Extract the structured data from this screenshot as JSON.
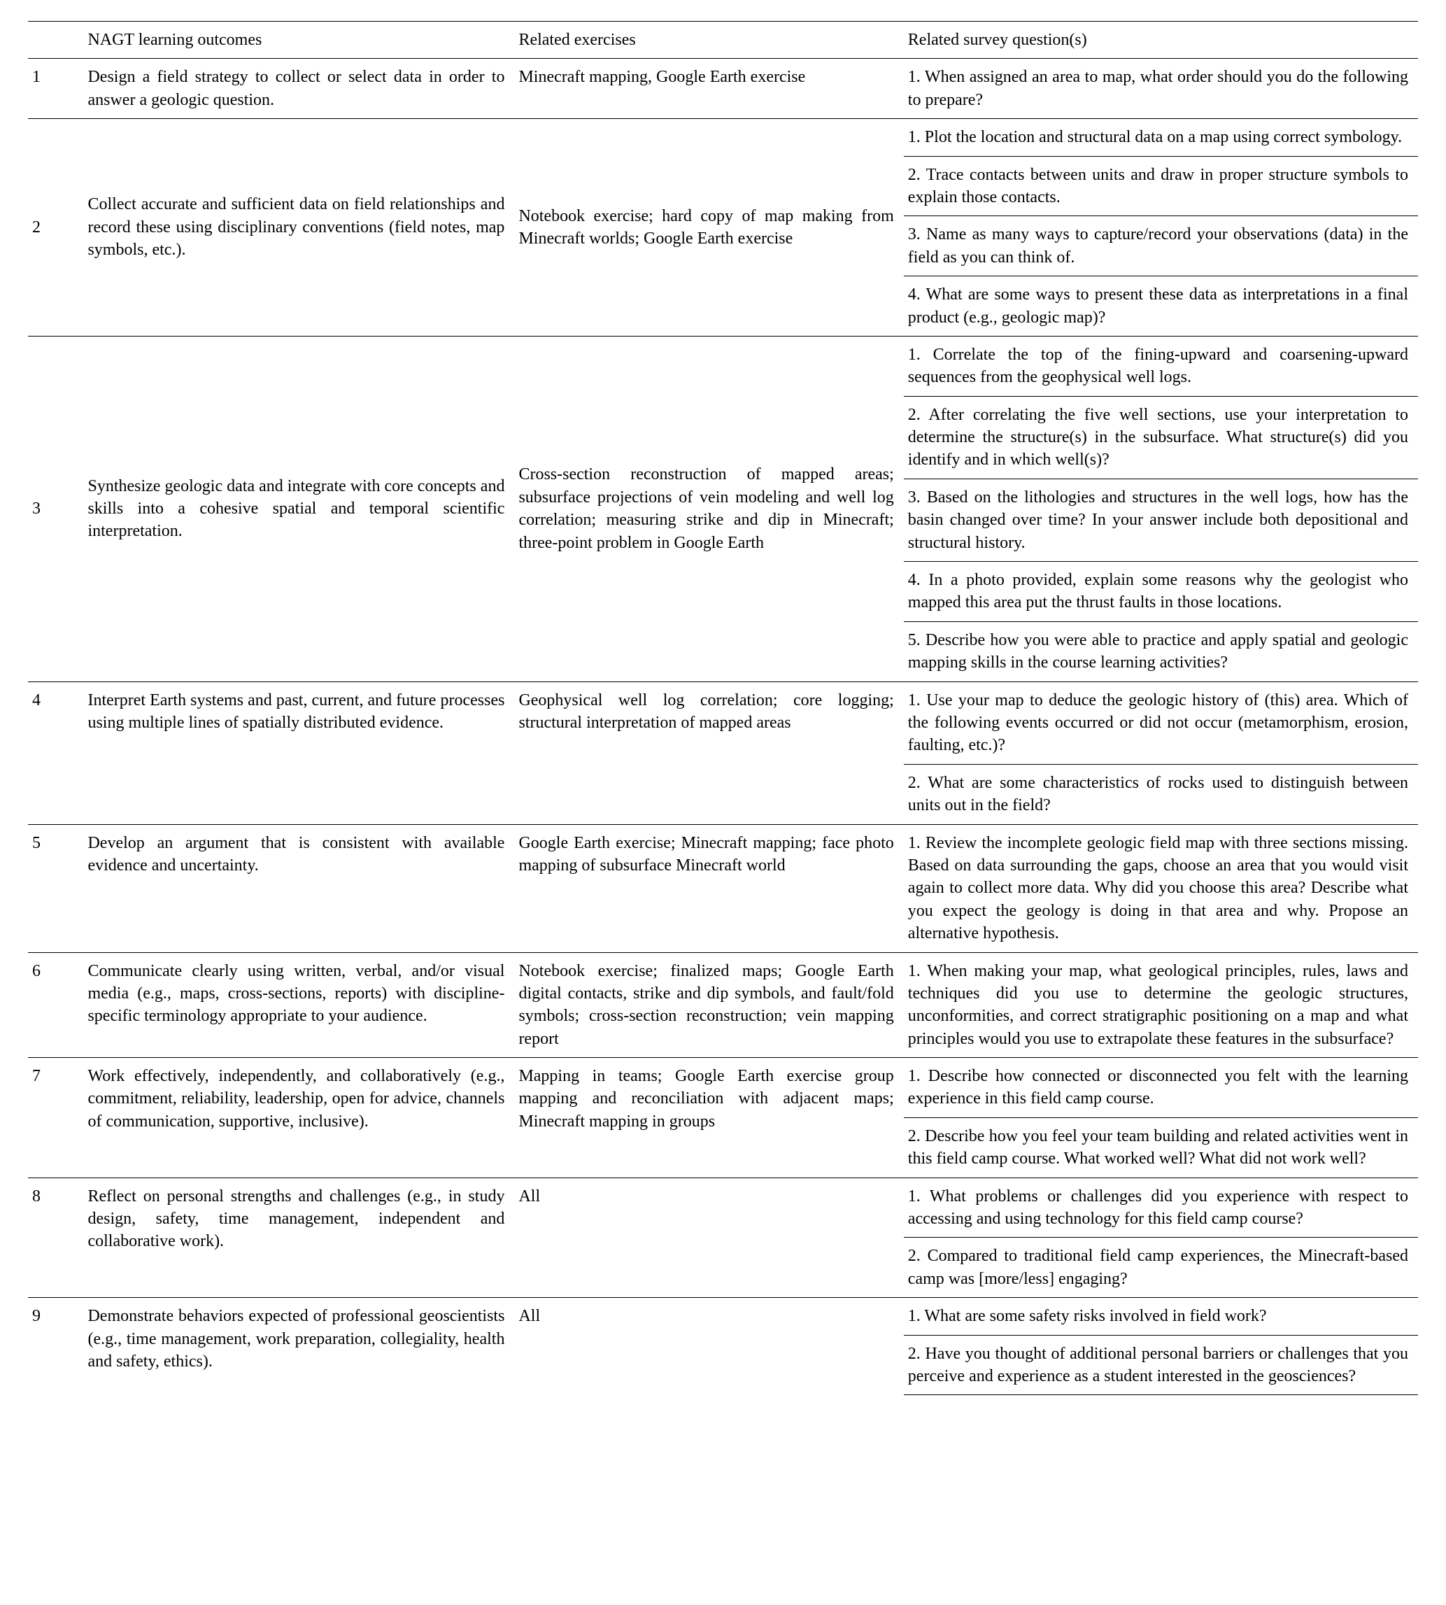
{
  "headers": {
    "num": "",
    "outcomes": "NAGT learning outcomes",
    "exercises": "Related exercises",
    "survey": "Related survey question(s)"
  },
  "rows": [
    {
      "num": "1",
      "outcome": "Design a field strategy to collect or select data in order to answer a geologic question.",
      "exercise": "Minecraft mapping, Google Earth exercise",
      "surveys": [
        "1. When assigned an area to map, what order should you do the following to prepare?"
      ],
      "valign": "top"
    },
    {
      "num": "2",
      "outcome": "Collect accurate and sufficient data on field relationships and record these using disciplinary conventions (field notes, map symbols, etc.).",
      "exercise": "Notebook exercise; hard copy of map making from Minecraft worlds; Google Earth exercise",
      "surveys": [
        "1. Plot the location and structural data on a map using correct symbology.",
        "2. Trace contacts between units and draw in proper structure symbols to explain those contacts.",
        "3. Name as many ways to capture/record your observations (data) in the field as you can think of.",
        "4. What are some ways to present these data as interpretations in a final product (e.g., geologic map)?"
      ],
      "valign": "middle"
    },
    {
      "num": "3",
      "outcome": "Synthesize geologic data and integrate with core concepts and skills into a cohesive spatial and temporal scientific interpretation.",
      "exercise": "Cross-section reconstruction of mapped areas; subsurface projections of vein modeling and well log correlation; measuring strike and dip in Minecraft; three-point problem in Google Earth",
      "surveys": [
        "1. Correlate the top of the fining-upward and coarsening-upward sequences from the geophysical well logs.",
        "2. After correlating the five well sections, use your interpretation to determine the structure(s) in the subsurface. What structure(s) did you identify and in which well(s)?",
        "3. Based on the lithologies and structures in the well logs, how has the basin changed over time? In your answer include both depositional and structural history.",
        "4. In a photo provided, explain some reasons why the geologist who mapped this area put the thrust faults in those locations.",
        "5. Describe how you were able to practice and apply spatial and geologic mapping skills in the course learning activities?"
      ],
      "valign": "middle"
    },
    {
      "num": "4",
      "outcome": "Interpret Earth systems and past, current, and future processes using multiple lines of spatially distributed evidence.",
      "exercise": "Geophysical well log correlation; core logging; structural interpretation of mapped areas",
      "surveys": [
        "1. Use your map to deduce the geologic history of (this) area. Which of the following events occurred or did not occur (metamorphism, erosion, faulting, etc.)?",
        "2. What are some characteristics of rocks used to distinguish between units out in the field?"
      ],
      "valign": "top"
    },
    {
      "num": "5",
      "outcome": "Develop an argument that is consistent with available evidence and uncertainty.",
      "exercise": "Google Earth exercise; Minecraft mapping; face photo mapping of subsurface Minecraft world",
      "surveys": [
        "1. Review the incomplete geologic field map with three sections missing. Based on data surrounding the gaps, choose an area that you would visit again to collect more data. Why did you choose this area? Describe what you expect the geology is doing in that area and why. Propose an alternative hypothesis."
      ],
      "valign": "top"
    },
    {
      "num": "6",
      "outcome": "Communicate clearly using written, verbal, and/or visual media (e.g., maps, cross-sections, reports) with discipline-specific terminology appropriate to your audience.",
      "exercise": "Notebook exercise; finalized maps; Google Earth digital contacts, strike and dip symbols, and fault/fold symbols; cross-section reconstruction; vein mapping report",
      "surveys": [
        "1. When making your map, what geological principles, rules, laws and techniques did you use to determine the geologic structures, unconformities, and correct stratigraphic positioning on a map and what principles would you use to extrapolate these features in the subsurface?"
      ],
      "valign": "top"
    },
    {
      "num": "7",
      "outcome": "Work effectively, independently, and collaboratively (e.g., commitment, reliability, leadership, open for advice, channels of communication, supportive, inclusive).",
      "exercise": "Mapping in teams; Google Earth exercise group mapping and reconciliation with adjacent maps; Minecraft mapping in groups",
      "surveys": [
        "1. Describe how connected or disconnected you felt with the learning experience in this field camp course.",
        "2. Describe how you feel your team building and related activities went in this field camp course. What worked well? What did not work well?"
      ],
      "valign": "top"
    },
    {
      "num": "8",
      "outcome": "Reflect on personal strengths and challenges (e.g., in study design, safety, time management, independent and collaborative work).",
      "exercise": "All",
      "surveys": [
        "1. What problems or challenges did you experience with respect to accessing and using technology for this field camp course?",
        "2. Compared to traditional field camp experiences, the Minecraft-based camp was [more/less] engaging?"
      ],
      "valign": "top"
    },
    {
      "num": "9",
      "outcome": "Demonstrate behaviors expected of professional geoscientists (e.g., time management, work preparation, collegiality, health and safety, ethics).",
      "exercise": "All",
      "surveys": [
        "1. What are some safety risks involved in field work?",
        "2. Have you thought of additional personal barriers or challenges that you perceive and experience as a student interested in the geosciences?"
      ],
      "valign": "top"
    }
  ]
}
